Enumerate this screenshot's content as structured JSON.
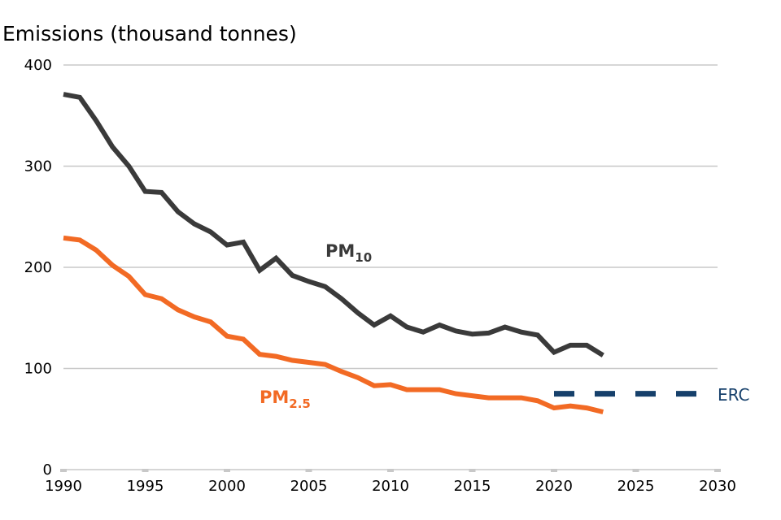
{
  "chart_data": {
    "type": "line",
    "title": "",
    "ylabel": "Emissions (thousand tonnes)",
    "xlabel": "",
    "xlim": [
      1990,
      2030
    ],
    "ylim": [
      0,
      400
    ],
    "grid": "horizontal",
    "x_ticks": [
      "1990",
      "1995",
      "2000",
      "2005",
      "2010",
      "2015",
      "2020",
      "2025",
      "2030"
    ],
    "y_ticks": [
      "0",
      "100",
      "200",
      "300",
      "400"
    ],
    "x": [
      1990,
      1991,
      1992,
      1993,
      1994,
      1995,
      1996,
      1997,
      1998,
      1999,
      2000,
      2001,
      2002,
      2003,
      2004,
      2005,
      2006,
      2007,
      2008,
      2009,
      2010,
      2011,
      2012,
      2013,
      2014,
      2015,
      2016,
      2017,
      2018,
      2019,
      2020,
      2021,
      2022,
      2023
    ],
    "series": [
      {
        "name": "PM10",
        "label_main": "PM",
        "label_sub": "10",
        "color": "#3a3a3a",
        "style": "solid",
        "values": [
          371,
          368,
          345,
          319,
          300,
          275,
          274,
          255,
          243,
          235,
          222,
          225,
          197,
          209,
          192,
          186,
          181,
          169,
          155,
          143,
          152,
          141,
          136,
          143,
          137,
          134,
          135,
          141,
          136,
          133,
          116,
          123,
          123,
          113
        ]
      },
      {
        "name": "PM2.5",
        "label_main": "PM",
        "label_sub": "2.5",
        "color": "#f26a24",
        "style": "solid",
        "values": [
          229,
          227,
          217,
          202,
          191,
          173,
          169,
          158,
          151,
          146,
          132,
          129,
          114,
          112,
          108,
          106,
          104,
          97,
          91,
          83,
          84,
          79,
          79,
          79,
          75,
          73,
          71,
          71,
          71,
          68,
          61,
          63,
          61,
          57
        ]
      },
      {
        "name": "ERC",
        "label_main": "ERC",
        "color": "#16406b",
        "style": "dashed",
        "x": [
          2020,
          2030
        ],
        "values": [
          75,
          75
        ]
      }
    ]
  }
}
